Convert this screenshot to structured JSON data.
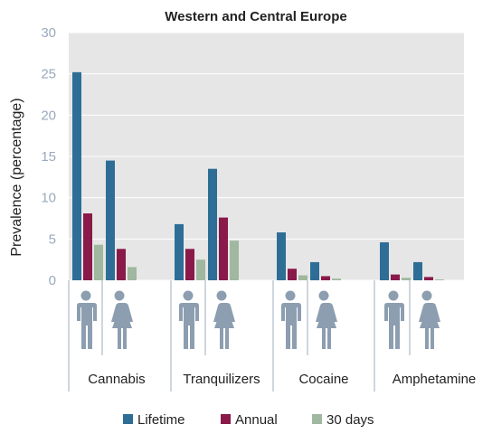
{
  "chart_data": {
    "type": "bar",
    "title": "Western and Central Europe",
    "ylabel": "Prevalence (percentage)",
    "ylim": [
      0,
      30
    ],
    "yticks": [
      0,
      5,
      10,
      15,
      20,
      25,
      30
    ],
    "categories": [
      "Cannabis",
      "Tranquilizers",
      "Cocaine",
      "Amphetamine"
    ],
    "subgroups": [
      "male",
      "female"
    ],
    "series": [
      {
        "name": "Lifetime",
        "color": "#2e6e96",
        "values": [
          [
            25.2,
            14.5
          ],
          [
            6.8,
            13.5
          ],
          [
            5.8,
            2.2
          ],
          [
            4.6,
            2.2
          ]
        ]
      },
      {
        "name": "Annual",
        "color": "#8a1a4a",
        "values": [
          [
            8.1,
            3.8
          ],
          [
            3.8,
            7.6
          ],
          [
            1.4,
            0.5
          ],
          [
            0.7,
            0.4
          ]
        ]
      },
      {
        "name": "30 days",
        "color": "#9fb89f",
        "values": [
          [
            4.3,
            1.6
          ],
          [
            2.5,
            4.8
          ],
          [
            0.6,
            0.2
          ],
          [
            0.3,
            0.1
          ]
        ]
      }
    ],
    "legend_position": "bottom",
    "grid": true,
    "icons": [
      "male-icon",
      "female-icon"
    ]
  }
}
